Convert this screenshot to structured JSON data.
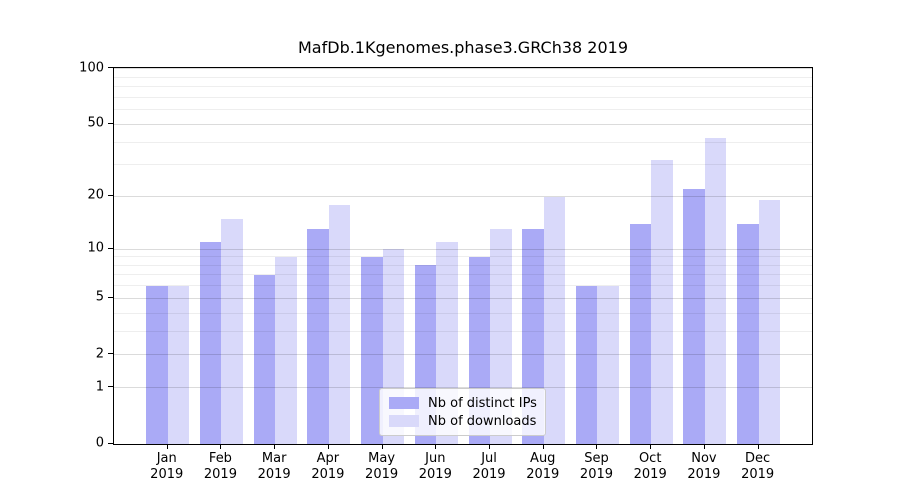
{
  "title": "MafDb.1Kgenomes.phase3.GRCh38 2019",
  "chart_data": {
    "type": "bar",
    "title": "MafDb.1Kgenomes.phase3.GRCh38 2019",
    "xlabel": "",
    "ylabel": "",
    "categories": [
      "Jan",
      "Feb",
      "Mar",
      "Apr",
      "May",
      "Jun",
      "Jul",
      "Aug",
      "Sep",
      "Oct",
      "Nov",
      "Dec"
    ],
    "category_year": "2019",
    "series": [
      {
        "name": "Nb of distinct IPs",
        "color": "#aaaaf6",
        "values": [
          6,
          11,
          7,
          13,
          9,
          8,
          9,
          13,
          6,
          14,
          22,
          14
        ]
      },
      {
        "name": "Nb of downloads",
        "color": "#d9d9fa",
        "values": [
          6,
          15,
          9,
          18,
          10,
          11,
          13,
          20,
          6,
          32,
          42,
          19
        ]
      }
    ],
    "y_scale": "log1p",
    "ylim": [
      0,
      105
    ],
    "y_ticks": [
      0,
      1,
      2,
      5,
      10,
      20,
      50,
      100
    ],
    "y_minor_gridlines": [
      3,
      4,
      6,
      7,
      8,
      9,
      30,
      40,
      60,
      70,
      80,
      90
    ],
    "grid": "on",
    "legend_position": "lower center"
  }
}
